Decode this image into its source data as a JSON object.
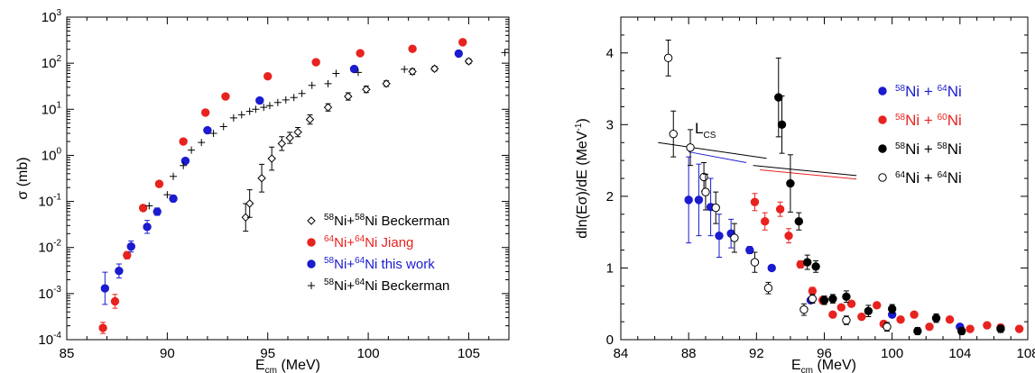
{
  "colors": {
    "black": "#000000",
    "red": "#e8231f",
    "blue": "#1b1bd0"
  },
  "chart_data": [
    {
      "type": "scatter",
      "title": "",
      "xlabel_main": "E",
      "xlabel_sub": "cm",
      "xlabel_unit": " (MeV)",
      "ylabel": "σ (mb)",
      "xlim": [
        85,
        107
      ],
      "ylim_log": [
        -4,
        3
      ],
      "yscale": "log",
      "x_ticks": [
        85,
        90,
        95,
        100,
        105
      ],
      "y_tick_exponents": [
        -4,
        -3,
        -2,
        -1,
        0,
        1,
        2,
        3
      ],
      "y_tick_labels": [
        "10⁻⁴",
        "10⁻³",
        "10⁻²",
        "10⁻¹",
        "10⁰",
        "10¹",
        "10²",
        "10³"
      ],
      "legend_position": "lower-right",
      "series": [
        {
          "name": "⁵⁸Ni+⁵⁸Ni Beckerman",
          "legend_parts": [
            "58",
            "Ni+",
            "58",
            "Ni Beckerman"
          ],
          "marker": "diamond-open",
          "color": "#000000",
          "points": [
            [
              93.9,
              0.045
            ],
            [
              94.1,
              0.09
            ],
            [
              94.7,
              0.32
            ],
            [
              95.2,
              0.85
            ],
            [
              95.7,
              1.8
            ],
            [
              96.1,
              2.4
            ],
            [
              96.5,
              3.2
            ],
            [
              97.1,
              6.0
            ],
            [
              98.0,
              11
            ],
            [
              99.0,
              19
            ],
            [
              99.9,
              27
            ],
            [
              100.9,
              36
            ],
            [
              102.2,
              66
            ],
            [
              103.3,
              76
            ],
            [
              105.0,
              110
            ]
          ],
          "errors": [
            0.3,
            0.3,
            0.3,
            0.25,
            0.15,
            0.12,
            0.1,
            0.1,
            0.08,
            0.08,
            0.07,
            0.06,
            0.06,
            0.05,
            0.05
          ]
        },
        {
          "name": "⁶⁴Ni+⁶⁴Ni Jiang",
          "legend_parts": [
            "64",
            "Ni+",
            "64",
            "Ni Jiang"
          ],
          "marker": "circle-filled",
          "color": "#e8231f",
          "points": [
            [
              86.8,
              0.00018
            ],
            [
              87.4,
              0.00068
            ],
            [
              88.0,
              0.0068
            ],
            [
              88.8,
              0.072
            ],
            [
              89.6,
              0.24
            ],
            [
              90.8,
              2.0
            ],
            [
              91.9,
              8.5
            ],
            [
              92.9,
              19
            ],
            [
              95.0,
              52
            ],
            [
              97.4,
              105
            ],
            [
              99.6,
              165
            ],
            [
              102.2,
              205
            ],
            [
              104.7,
              285
            ]
          ],
          "errors": [
            0.12,
            0.15,
            0.08,
            0.06,
            0.06,
            0.04,
            0.04,
            0.03,
            0.03,
            0.03,
            0.03,
            0.03,
            0.03
          ]
        },
        {
          "name": "⁵⁸Ni+⁶⁴Ni this work",
          "legend_parts": [
            "58",
            "Ni+",
            "64",
            "Ni this work"
          ],
          "marker": "circle-filled",
          "color": "#1b1bd0",
          "points": [
            [
              86.9,
              0.0013
            ],
            [
              87.6,
              0.0031
            ],
            [
              88.2,
              0.0105
            ],
            [
              89.0,
              0.028
            ],
            [
              89.5,
              0.06
            ],
            [
              90.3,
              0.115
            ],
            [
              90.9,
              0.76
            ],
            [
              92.0,
              3.5
            ],
            [
              94.6,
              15.5
            ],
            [
              99.3,
              75
            ],
            [
              104.5,
              162
            ]
          ],
          "errors": [
            0.35,
            0.15,
            0.12,
            0.14,
            0.08,
            0.07,
            0.04,
            0.03,
            0.03,
            0.03,
            0.03
          ]
        },
        {
          "name": "⁵⁸Ni+⁶⁴Ni Beckerman",
          "legend_parts": [
            "58",
            "Ni+",
            "64",
            "Ni Beckerman"
          ],
          "marker": "plus",
          "color": "#000000",
          "points": [
            [
              89.1,
              0.08
            ],
            [
              90.0,
              0.14
            ],
            [
              90.3,
              0.35
            ],
            [
              90.8,
              0.6
            ],
            [
              91.2,
              1.3
            ],
            [
              91.7,
              1.9
            ],
            [
              92.3,
              3.0
            ],
            [
              92.8,
              4.2
            ],
            [
              93.3,
              6.5
            ],
            [
              93.7,
              7.6
            ],
            [
              94.1,
              9.0
            ],
            [
              94.4,
              10
            ],
            [
              94.8,
              11
            ],
            [
              95.1,
              12
            ],
            [
              95.5,
              14
            ],
            [
              95.9,
              16
            ],
            [
              96.3,
              18
            ],
            [
              96.7,
              22
            ],
            [
              97.2,
              33
            ],
            [
              98.0,
              36
            ],
            [
              98.4,
              60
            ],
            [
              99.5,
              63
            ],
            [
              101.8,
              74
            ],
            [
              106.8,
              170
            ]
          ],
          "errors": []
        }
      ]
    },
    {
      "type": "scatter",
      "title": "",
      "xlabel_main": "E",
      "xlabel_sub": "cm",
      "xlabel_unit": " (MeV)",
      "ylabel": "dln(Eσ)/dE (MeV⁻¹)",
      "ylabel_main": "dln(Eσ)/dE (MeV",
      "ylabel_sup": "-1",
      "ylabel_close": ")",
      "xlim": [
        84,
        108
      ],
      "ylim": [
        0,
        4.5
      ],
      "x_ticks": [
        84,
        88,
        92,
        96,
        100,
        104,
        108
      ],
      "y_ticks": [
        0,
        1,
        2,
        3,
        4
      ],
      "annotation": {
        "main": "L",
        "sub": "CS"
      },
      "legend_position": "upper-right",
      "lines": [
        {
          "color": "#000000",
          "points": [
            [
              86.2,
              2.75
            ],
            [
              92.6,
              2.53
            ]
          ]
        },
        {
          "color": "#1b1bd0",
          "points": [
            [
              88.0,
              2.62
            ],
            [
              91.4,
              2.47
            ]
          ]
        },
        {
          "color": "#000000",
          "points": [
            [
              91.8,
              2.43
            ],
            [
              97.9,
              2.29
            ]
          ]
        },
        {
          "color": "#e8231f",
          "points": [
            [
              92.2,
              2.37
            ],
            [
              97.9,
              2.24
            ]
          ]
        }
      ],
      "series": [
        {
          "name": "⁵⁸Ni + ⁶⁴Ni",
          "legend_parts": [
            "58",
            "Ni + ",
            "64",
            "Ni"
          ],
          "marker": "circle-filled",
          "color": "#1b1bd0",
          "points": [
            [
              88.0,
              1.95
            ],
            [
              88.6,
              1.95
            ],
            [
              89.3,
              1.85
            ],
            [
              89.8,
              1.45
            ],
            [
              90.5,
              1.48
            ],
            [
              91.6,
              1.25
            ],
            [
              92.9,
              1.0
            ],
            [
              95.2,
              0.55
            ],
            [
              100.0,
              0.35
            ],
            [
              104.0,
              0.18
            ]
          ],
          "errors": [
            0.6,
            0.5,
            0.4,
            0.3,
            0.2,
            0.05,
            0.03,
            0.03,
            0.03,
            0.03
          ]
        },
        {
          "name": "⁵⁸Ni + ⁶⁰Ni",
          "legend_parts": [
            "58",
            "Ni + ",
            "60",
            "Ni"
          ],
          "marker": "circle-filled",
          "color": "#e8231f",
          "points": [
            [
              91.9,
              1.92
            ],
            [
              92.5,
              1.65
            ],
            [
              93.4,
              1.82
            ],
            [
              93.9,
              1.45
            ],
            [
              94.6,
              1.05
            ],
            [
              95.3,
              0.68
            ],
            [
              95.9,
              0.55
            ],
            [
              96.5,
              0.35
            ],
            [
              97.0,
              0.45
            ],
            [
              97.6,
              0.5
            ],
            [
              98.2,
              0.32
            ],
            [
              99.1,
              0.48
            ],
            [
              99.5,
              0.22
            ],
            [
              100.5,
              0.28
            ],
            [
              101.3,
              0.35
            ],
            [
              102.2,
              0.18
            ],
            [
              103.4,
              0.28
            ],
            [
              104.6,
              0.15
            ],
            [
              105.6,
              0.2
            ],
            [
              106.4,
              0.17
            ],
            [
              107.5,
              0.15
            ]
          ],
          "errors": [
            0.12,
            0.12,
            0.1,
            0.1,
            0.05,
            0.05,
            0.05,
            0.04,
            0.04,
            0.04,
            0.04,
            0.04,
            0.04,
            0.04,
            0.04,
            0.04,
            0.04,
            0.04,
            0.04,
            0.04,
            0.04
          ]
        },
        {
          "name": "⁵⁸Ni + ⁵⁸Ni",
          "legend_parts": [
            "58",
            "Ni + ",
            "58",
            "Ni"
          ],
          "marker": "circle-filled",
          "color": "#000000",
          "points": [
            [
              93.3,
              3.38
            ],
            [
              93.5,
              3.0
            ],
            [
              94.0,
              2.18
            ],
            [
              94.5,
              1.65
            ],
            [
              95.0,
              1.08
            ],
            [
              95.5,
              1.02
            ],
            [
              96.0,
              0.55
            ],
            [
              96.5,
              0.57
            ],
            [
              97.3,
              0.6
            ],
            [
              98.6,
              0.4
            ],
            [
              100.0,
              0.43
            ],
            [
              101.5,
              0.12
            ],
            [
              102.6,
              0.3
            ],
            [
              104.1,
              0.12
            ],
            [
              106.4,
              0.15
            ]
          ],
          "errors": [
            0.55,
            0.4,
            0.4,
            0.12,
            0.1,
            0.08,
            0.06,
            0.06,
            0.08,
            0.08,
            0.06,
            0.05,
            0.06,
            0.05,
            0.05
          ]
        },
        {
          "name": "⁶⁴Ni + ⁶⁴Ni",
          "legend_parts": [
            "64",
            "Ni + ",
            "64",
            "Ni"
          ],
          "marker": "circle-open",
          "color": "#000000",
          "points": [
            [
              86.8,
              3.93
            ],
            [
              87.1,
              2.87
            ],
            [
              88.1,
              2.68
            ],
            [
              88.9,
              2.27
            ],
            [
              89.0,
              2.06
            ],
            [
              89.6,
              1.84
            ],
            [
              90.7,
              1.42
            ],
            [
              91.9,
              1.08
            ],
            [
              92.7,
              0.72
            ],
            [
              94.8,
              0.42
            ],
            [
              95.3,
              0.57
            ],
            [
              97.3,
              0.27
            ],
            [
              99.7,
              0.18
            ]
          ],
          "errors": [
            0.25,
            0.32,
            0.25,
            0.2,
            0.25,
            0.22,
            0.2,
            0.14,
            0.08,
            0.08,
            0.06,
            0.06,
            0.06
          ]
        }
      ]
    }
  ]
}
